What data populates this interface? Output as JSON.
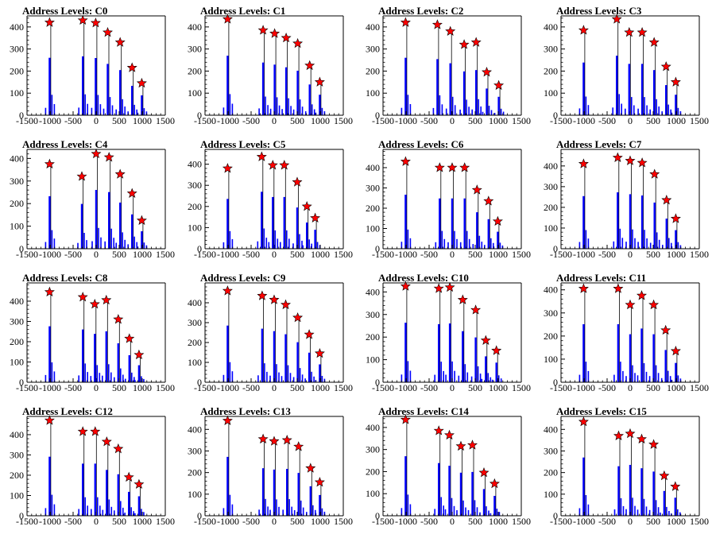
{
  "chart_data": [
    {
      "type": "bar",
      "title": "Address Levels: C0",
      "xlim": [
        -1500,
        1500
      ],
      "ylim": [
        0,
        450
      ],
      "xticks": [
        "-1500",
        "-1000",
        "-500",
        "0",
        "500",
        "1000",
        "1500"
      ],
      "yticks": [
        "0",
        "100",
        "200",
        "300",
        "400"
      ],
      "peaks": [
        {
          "x": -1010,
          "y": 420
        },
        {
          "x": -290,
          "y": 430
        },
        {
          "x": -10,
          "y": 418
        },
        {
          "x": 250,
          "y": 375
        },
        {
          "x": 520,
          "y": 330
        },
        {
          "x": 780,
          "y": 215
        },
        {
          "x": 990,
          "y": 145
        }
      ]
    },
    {
      "type": "bar",
      "title": "Address Levels: C1",
      "xlim": [
        -1500,
        1500
      ],
      "ylim": [
        0,
        450
      ],
      "xticks": [
        "-1500",
        "-1000",
        "-500",
        "0",
        "500",
        "1000",
        "1500"
      ],
      "yticks": [
        "0",
        "100",
        "200",
        "300",
        "400"
      ],
      "peaks": [
        {
          "x": -1010,
          "y": 435
        },
        {
          "x": -240,
          "y": 385
        },
        {
          "x": 10,
          "y": 370
        },
        {
          "x": 260,
          "y": 350
        },
        {
          "x": 510,
          "y": 325
        },
        {
          "x": 770,
          "y": 225
        },
        {
          "x": 990,
          "y": 150
        }
      ]
    },
    {
      "type": "bar",
      "title": "Address Levels: C2",
      "xlim": [
        -1500,
        1500
      ],
      "ylim": [
        0,
        450
      ],
      "xticks": [
        "-1500",
        "-1000",
        "-500",
        "0",
        "500",
        "1000",
        "1500"
      ],
      "yticks": [
        "0",
        "100",
        "200",
        "300",
        "400"
      ],
      "peaks": [
        {
          "x": -1010,
          "y": 420
        },
        {
          "x": -320,
          "y": 410
        },
        {
          "x": -40,
          "y": 380
        },
        {
          "x": 260,
          "y": 320
        },
        {
          "x": 520,
          "y": 330
        },
        {
          "x": 750,
          "y": 195
        },
        {
          "x": 1010,
          "y": 135
        }
      ]
    },
    {
      "type": "bar",
      "title": "Address Levels: C3",
      "xlim": [
        -1500,
        1500
      ],
      "ylim": [
        0,
        450
      ],
      "xticks": [
        "-1500",
        "-1000",
        "-500",
        "0",
        "500",
        "1000",
        "1500"
      ],
      "yticks": [
        "0",
        "100",
        "200",
        "300",
        "400"
      ],
      "peaks": [
        {
          "x": -1010,
          "y": 385
        },
        {
          "x": -290,
          "y": 435
        },
        {
          "x": -20,
          "y": 375
        },
        {
          "x": 260,
          "y": 375
        },
        {
          "x": 520,
          "y": 330
        },
        {
          "x": 780,
          "y": 220
        },
        {
          "x": 990,
          "y": 150
        }
      ]
    },
    {
      "type": "bar",
      "title": "Address Levels: C4",
      "xlim": [
        -1500,
        1500
      ],
      "ylim": [
        0,
        440
      ],
      "xticks": [
        "-1500",
        "-1000",
        "-500",
        "0",
        "500",
        "1000",
        "1500"
      ],
      "yticks": [
        "0",
        "100",
        "200",
        "300",
        "400"
      ],
      "peaks": [
        {
          "x": -1010,
          "y": 375
        },
        {
          "x": -310,
          "y": 320
        },
        {
          "x": 0,
          "y": 420
        },
        {
          "x": 280,
          "y": 405
        },
        {
          "x": 520,
          "y": 330
        },
        {
          "x": 780,
          "y": 245
        },
        {
          "x": 990,
          "y": 125
        }
      ]
    },
    {
      "type": "bar",
      "title": "Address Levels: C5",
      "xlim": [
        -1500,
        1500
      ],
      "ylim": [
        0,
        470
      ],
      "xticks": [
        "-1500",
        "-1000",
        "-500",
        "0",
        "500",
        "1000",
        "1500"
      ],
      "yticks": [
        "0",
        "100",
        "200",
        "300",
        "400"
      ],
      "peaks": [
        {
          "x": -1010,
          "y": 380
        },
        {
          "x": -270,
          "y": 435
        },
        {
          "x": -30,
          "y": 395
        },
        {
          "x": 220,
          "y": 395
        },
        {
          "x": 500,
          "y": 315
        },
        {
          "x": 710,
          "y": 200
        },
        {
          "x": 890,
          "y": 145
        }
      ]
    },
    {
      "type": "bar",
      "title": "Address Levels: C6",
      "xlim": [
        -1500,
        1500
      ],
      "ylim": [
        0,
        490
      ],
      "xticks": [
        "-1500",
        "-1000",
        "-500",
        "0",
        "500",
        "1000",
        "1500"
      ],
      "yticks": [
        "0",
        "100",
        "200",
        "300",
        "400"
      ],
      "peaks": [
        {
          "x": -1010,
          "y": 430
        },
        {
          "x": -270,
          "y": 400
        },
        {
          "x": 0,
          "y": 400
        },
        {
          "x": 270,
          "y": 400
        },
        {
          "x": 540,
          "y": 290
        },
        {
          "x": 790,
          "y": 235
        },
        {
          "x": 990,
          "y": 135
        }
      ]
    },
    {
      "type": "bar",
      "title": "Address Levels: C7",
      "xlim": [
        -1500,
        1500
      ],
      "ylim": [
        0,
        480
      ],
      "xticks": [
        "-1500",
        "-1000",
        "-500",
        "0",
        "500",
        "1000",
        "1500"
      ],
      "yticks": [
        "0",
        "100",
        "200",
        "300",
        "400"
      ],
      "peaks": [
        {
          "x": -1010,
          "y": 410
        },
        {
          "x": -270,
          "y": 440
        },
        {
          "x": 0,
          "y": 425
        },
        {
          "x": 260,
          "y": 415
        },
        {
          "x": 530,
          "y": 360
        },
        {
          "x": 790,
          "y": 235
        },
        {
          "x": 990,
          "y": 145
        }
      ]
    },
    {
      "type": "bar",
      "title": "Address Levels: C8",
      "xlim": [
        -1500,
        1500
      ],
      "ylim": [
        0,
        490
      ],
      "xticks": [
        "-1500",
        "-1000",
        "-500",
        "0",
        "500",
        "1000",
        "1500"
      ],
      "yticks": [
        "0",
        "100",
        "200",
        "300",
        "400"
      ],
      "peaks": [
        {
          "x": -1010,
          "y": 445
        },
        {
          "x": -290,
          "y": 420
        },
        {
          "x": -30,
          "y": 385
        },
        {
          "x": 220,
          "y": 405
        },
        {
          "x": 480,
          "y": 310
        },
        {
          "x": 720,
          "y": 215
        },
        {
          "x": 930,
          "y": 135
        }
      ]
    },
    {
      "type": "bar",
      "title": "Address Levels: C9",
      "xlim": [
        -1500,
        1500
      ],
      "ylim": [
        0,
        500
      ],
      "xticks": [
        "-1500",
        "-1000",
        "-500",
        "0",
        "500",
        "1000",
        "1500"
      ],
      "yticks": [
        "0",
        "100",
        "200",
        "300",
        "400"
      ],
      "peaks": [
        {
          "x": -1010,
          "y": 460
        },
        {
          "x": -260,
          "y": 435
        },
        {
          "x": 0,
          "y": 415
        },
        {
          "x": 250,
          "y": 390
        },
        {
          "x": 510,
          "y": 325
        },
        {
          "x": 760,
          "y": 240
        },
        {
          "x": 990,
          "y": 145
        }
      ]
    },
    {
      "type": "bar",
      "title": "Address Levels: C10",
      "xlim": [
        -1500,
        1500
      ],
      "ylim": [
        0,
        440
      ],
      "xticks": [
        "-1500",
        "-1000",
        "-500",
        "0",
        "500",
        "1000",
        "1500"
      ],
      "yticks": [
        "0",
        "100",
        "200",
        "300",
        "400"
      ],
      "peaks": [
        {
          "x": -1010,
          "y": 425
        },
        {
          "x": -290,
          "y": 415
        },
        {
          "x": -50,
          "y": 420
        },
        {
          "x": 230,
          "y": 365
        },
        {
          "x": 510,
          "y": 320
        },
        {
          "x": 730,
          "y": 185
        },
        {
          "x": 960,
          "y": 140
        }
      ]
    },
    {
      "type": "bar",
      "title": "Address Levels: C11",
      "xlim": [
        -1500,
        1500
      ],
      "ylim": [
        0,
        430
      ],
      "xticks": [
        "-1500",
        "-1000",
        "-500",
        "0",
        "500",
        "1000",
        "1500"
      ],
      "yticks": [
        "0",
        "100",
        "200",
        "300",
        "400"
      ],
      "peaks": [
        {
          "x": -1010,
          "y": 405
        },
        {
          "x": -260,
          "y": 405
        },
        {
          "x": 0,
          "y": 335
        },
        {
          "x": 250,
          "y": 375
        },
        {
          "x": 510,
          "y": 335
        },
        {
          "x": 770,
          "y": 225
        },
        {
          "x": 990,
          "y": 135
        }
      ]
    },
    {
      "type": "bar",
      "title": "Address Levels: C12",
      "xlim": [
        -1500,
        1500
      ],
      "ylim": [
        0,
        490
      ],
      "xticks": [
        "-1500",
        "-1000",
        "-500",
        "0",
        "500",
        "1000",
        "1500"
      ],
      "yticks": [
        "0",
        "100",
        "200",
        "300",
        "400"
      ],
      "peaks": [
        {
          "x": -1010,
          "y": 470
        },
        {
          "x": -290,
          "y": 415
        },
        {
          "x": -20,
          "y": 415
        },
        {
          "x": 230,
          "y": 365
        },
        {
          "x": 480,
          "y": 330
        },
        {
          "x": 710,
          "y": 190
        },
        {
          "x": 930,
          "y": 155
        }
      ]
    },
    {
      "type": "bar",
      "title": "Address Levels: C13",
      "xlim": [
        -1500,
        1500
      ],
      "ylim": [
        0,
        460
      ],
      "xticks": [
        "-1500",
        "-1000",
        "-500",
        "0",
        "500",
        "1000",
        "1500"
      ],
      "yticks": [
        "0",
        "100",
        "200",
        "300",
        "400"
      ],
      "peaks": [
        {
          "x": -1010,
          "y": 440
        },
        {
          "x": -240,
          "y": 355
        },
        {
          "x": 0,
          "y": 345
        },
        {
          "x": 280,
          "y": 350
        },
        {
          "x": 530,
          "y": 320
        },
        {
          "x": 790,
          "y": 220
        },
        {
          "x": 990,
          "y": 155
        }
      ]
    },
    {
      "type": "bar",
      "title": "Address Levels: C14",
      "xlim": [
        -1500,
        1500
      ],
      "ylim": [
        0,
        450
      ],
      "xticks": [
        "-1500",
        "-1000",
        "-500",
        "0",
        "500",
        "1000",
        "1500"
      ],
      "yticks": [
        "0",
        "100",
        "200",
        "300",
        "400"
      ],
      "peaks": [
        {
          "x": -1010,
          "y": 435
        },
        {
          "x": -290,
          "y": 385
        },
        {
          "x": -60,
          "y": 365
        },
        {
          "x": 190,
          "y": 315
        },
        {
          "x": 440,
          "y": 320
        },
        {
          "x": 690,
          "y": 195
        },
        {
          "x": 920,
          "y": 145
        }
      ]
    },
    {
      "type": "bar",
      "title": "Address Levels: C15",
      "xlim": [
        -1500,
        1500
      ],
      "ylim": [
        0,
        460
      ],
      "xticks": [
        "-1500",
        "-1000",
        "-500",
        "0",
        "500",
        "1000",
        "1500"
      ],
      "yticks": [
        "0",
        "100",
        "200",
        "300",
        "400"
      ],
      "peaks": [
        {
          "x": -1010,
          "y": 435
        },
        {
          "x": -250,
          "y": 370
        },
        {
          "x": 0,
          "y": 380
        },
        {
          "x": 250,
          "y": 355
        },
        {
          "x": 510,
          "y": 330
        },
        {
          "x": 740,
          "y": 185
        },
        {
          "x": 980,
          "y": 135
        }
      ]
    }
  ],
  "colors": {
    "bar": "#0000ff",
    "bar_outline": "#000000",
    "marker": "#ff0000",
    "axis": "#000000"
  },
  "marker_icon": "star-marker-icon"
}
